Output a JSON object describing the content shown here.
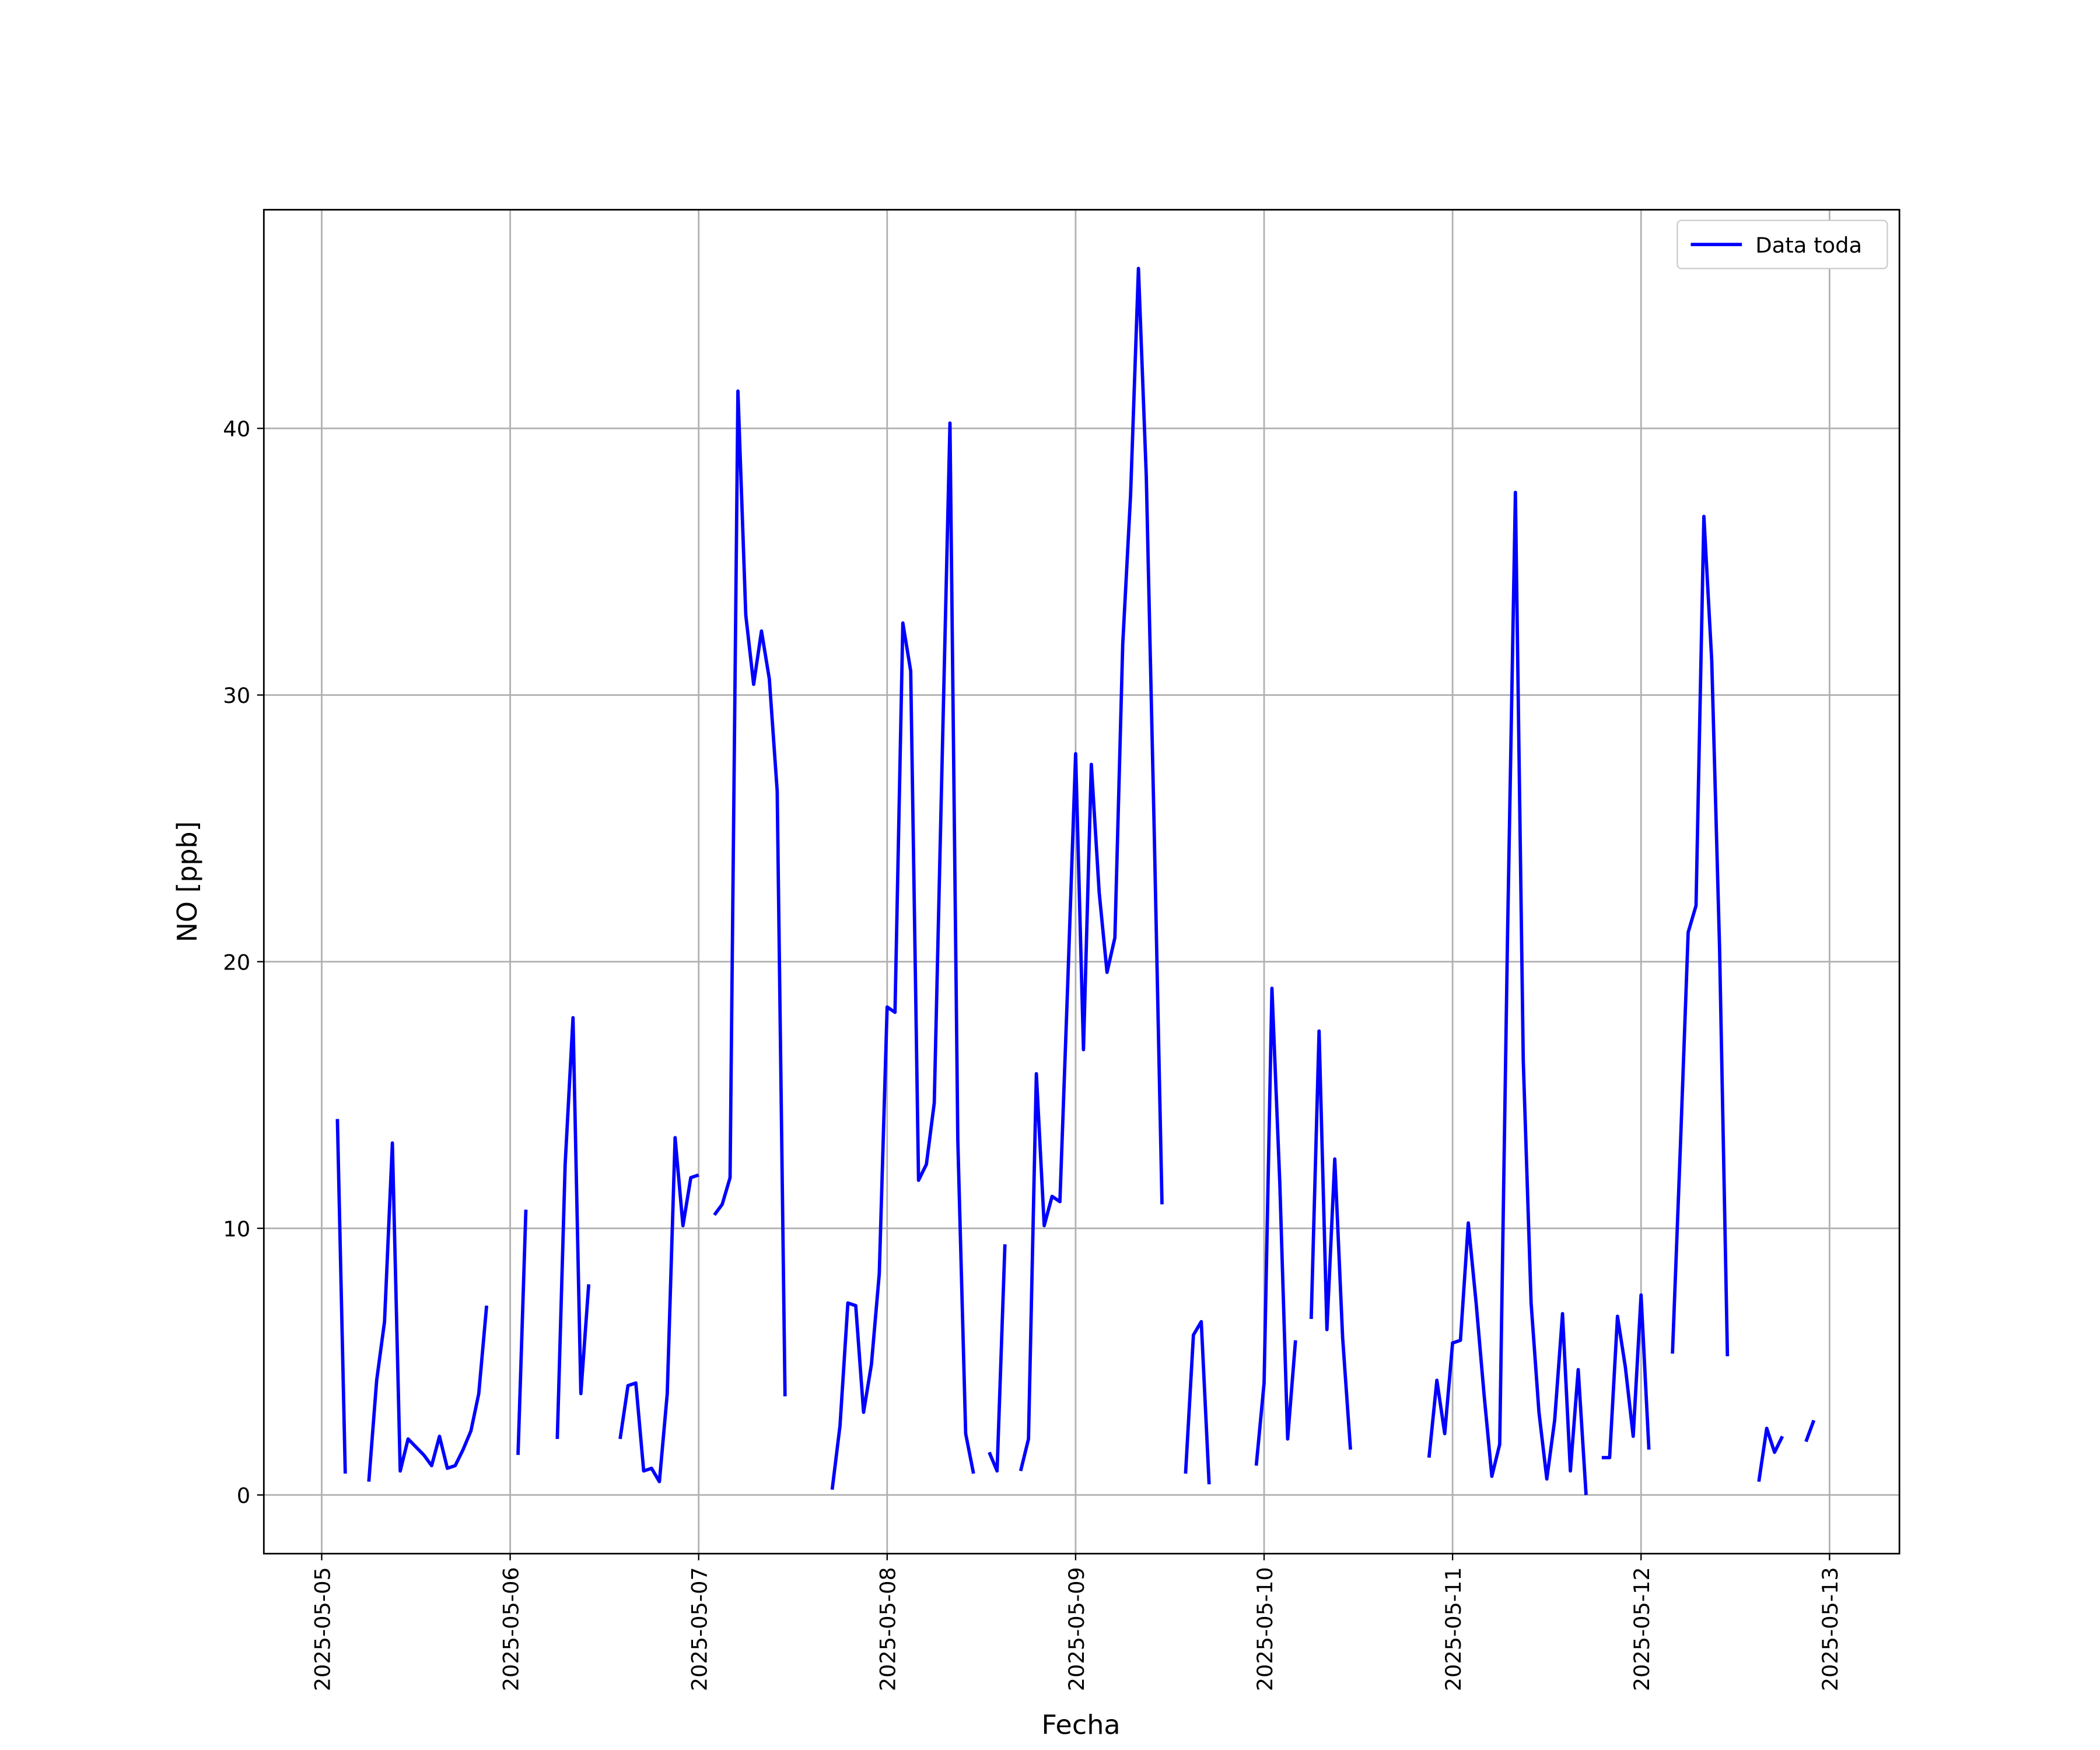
{
  "chart_data": {
    "type": "line",
    "x_label": "Fecha",
    "y_label": "NO [ppb]",
    "x": [
      "2025-05-05 02:00",
      "2025-05-05 03:00",
      "2025-05-05 04:00",
      "2025-05-05 06:00",
      "2025-05-05 07:00",
      "2025-05-05 08:00",
      "2025-05-05 09:00",
      "2025-05-05 10:00",
      "2025-05-05 11:00",
      "2025-05-05 12:00",
      "2025-05-05 13:00",
      "2025-05-05 14:00",
      "2025-05-05 15:00",
      "2025-05-05 16:00",
      "2025-05-05 17:00",
      "2025-05-05 18:00",
      "2025-05-05 19:00",
      "2025-05-05 20:00",
      "2025-05-05 21:00",
      "2025-05-05 22:00",
      "2025-05-06 01:00",
      "2025-05-06 02:00",
      "2025-05-06 03:00",
      "2025-05-06 06:00",
      "2025-05-06 07:00",
      "2025-05-06 08:00",
      "2025-05-06 09:00",
      "2025-05-06 10:00",
      "2025-05-06 11:00",
      "2025-05-06 14:00",
      "2025-05-06 15:00",
      "2025-05-06 16:00",
      "2025-05-06 17:00",
      "2025-05-06 18:00",
      "2025-05-06 19:00",
      "2025-05-06 20:00",
      "2025-05-06 21:00",
      "2025-05-06 22:00",
      "2025-05-06 23:00",
      "2025-05-07 00:00",
      "2025-05-07 01:00",
      "2025-05-07 02:00",
      "2025-05-07 03:00",
      "2025-05-07 04:00",
      "2025-05-07 05:00",
      "2025-05-07 06:00",
      "2025-05-07 07:00",
      "2025-05-07 08:00",
      "2025-05-07 09:00",
      "2025-05-07 10:00",
      "2025-05-07 11:00",
      "2025-05-07 12:00",
      "2025-05-07 17:00",
      "2025-05-07 18:00",
      "2025-05-07 19:00",
      "2025-05-07 20:00",
      "2025-05-07 21:00",
      "2025-05-07 22:00",
      "2025-05-07 23:00",
      "2025-05-08 00:00",
      "2025-05-08 01:00",
      "2025-05-08 02:00",
      "2025-05-08 03:00",
      "2025-05-08 04:00",
      "2025-05-08 05:00",
      "2025-05-08 06:00",
      "2025-05-08 07:00",
      "2025-05-08 08:00",
      "2025-05-08 09:00",
      "2025-05-08 10:00",
      "2025-05-08 11:00",
      "2025-05-08 12:00",
      "2025-05-08 13:00",
      "2025-05-08 14:00",
      "2025-05-08 15:00",
      "2025-05-08 16:00",
      "2025-05-08 17:00",
      "2025-05-08 18:00",
      "2025-05-08 19:00",
      "2025-05-08 20:00",
      "2025-05-08 21:00",
      "2025-05-08 22:00",
      "2025-05-08 23:00",
      "2025-05-09 00:00",
      "2025-05-09 01:00",
      "2025-05-09 02:00",
      "2025-05-09 03:00",
      "2025-05-09 04:00",
      "2025-05-09 05:00",
      "2025-05-09 06:00",
      "2025-05-09 07:00",
      "2025-05-09 08:00",
      "2025-05-09 09:00",
      "2025-05-09 10:00",
      "2025-05-09 11:00",
      "2025-05-09 12:00",
      "2025-05-09 14:00",
      "2025-05-09 15:00",
      "2025-05-09 16:00",
      "2025-05-09 17:00",
      "2025-05-09 18:00",
      "2025-05-09 23:00",
      "2025-05-10 00:00",
      "2025-05-10 01:00",
      "2025-05-10 02:00",
      "2025-05-10 03:00",
      "2025-05-10 04:00",
      "2025-05-10 05:00",
      "2025-05-10 06:00",
      "2025-05-10 07:00",
      "2025-05-10 08:00",
      "2025-05-10 09:00",
      "2025-05-10 10:00",
      "2025-05-10 11:00",
      "2025-05-10 12:00",
      "2025-05-10 21:00",
      "2025-05-10 22:00",
      "2025-05-10 23:00",
      "2025-05-11 00:00",
      "2025-05-11 01:00",
      "2025-05-11 02:00",
      "2025-05-11 03:00",
      "2025-05-11 04:00",
      "2025-05-11 05:00",
      "2025-05-11 06:00",
      "2025-05-11 07:00",
      "2025-05-11 08:00",
      "2025-05-11 09:00",
      "2025-05-11 10:00",
      "2025-05-11 11:00",
      "2025-05-11 12:00",
      "2025-05-11 13:00",
      "2025-05-11 14:00",
      "2025-05-11 15:00",
      "2025-05-11 16:00",
      "2025-05-11 17:00",
      "2025-05-11 18:00",
      "2025-05-11 19:00",
      "2025-05-11 20:00",
      "2025-05-11 21:00",
      "2025-05-11 22:00",
      "2025-05-11 23:00",
      "2025-05-12 00:00",
      "2025-05-12 01:00",
      "2025-05-12 02:00",
      "2025-05-12 04:00",
      "2025-05-12 05:00",
      "2025-05-12 06:00",
      "2025-05-12 07:00",
      "2025-05-12 08:00",
      "2025-05-12 09:00",
      "2025-05-12 10:00",
      "2025-05-12 11:00",
      "2025-05-12 12:00",
      "2025-05-12 15:00",
      "2025-05-12 16:00",
      "2025-05-12 17:00",
      "2025-05-12 18:00",
      "2025-05-12 19:00",
      "2025-05-12 21:00",
      "2025-05-12 22:00"
    ],
    "series": [
      {
        "name": "Data toda",
        "color": "#0000ff",
        "values": [
          14.1,
          0.8,
          null,
          0.5,
          4.3,
          6.5,
          13.2,
          0.9,
          2.1,
          1.8,
          1.5,
          1.1,
          2.2,
          1.0,
          1.1,
          1.7,
          2.4,
          3.8,
          7.1,
          null,
          1.5,
          10.7,
          null,
          2.1,
          12.4,
          17.9,
          3.8,
          7.9,
          null,
          2.1,
          4.1,
          4.2,
          0.9,
          1.0,
          0.5,
          3.8,
          13.4,
          10.1,
          11.9,
          12.0,
          null,
          10.5,
          10.9,
          11.9,
          41.4,
          33.0,
          30.4,
          32.4,
          30.6,
          26.4,
          3.7,
          null,
          0.2,
          2.6,
          7.2,
          7.1,
          3.1,
          4.9,
          8.3,
          18.3,
          18.1,
          32.7,
          30.9,
          11.8,
          12.4,
          14.7,
          27.5,
          40.2,
          13.3,
          2.3,
          0.8,
          null,
          1.6,
          0.9,
          9.4,
          null,
          0.9,
          2.1,
          15.8,
          10.1,
          11.2,
          11.0,
          19.2,
          27.8,
          16.7,
          27.4,
          22.6,
          19.6,
          20.9,
          31.9,
          37.5,
          46.0,
          38.2,
          25.0,
          10.9,
          null,
          0.8,
          6.0,
          6.5,
          0.4,
          null,
          1.1,
          4.2,
          19.0,
          11.7,
          2.1,
          5.8,
          null,
          6.6,
          17.4,
          6.2,
          12.6,
          5.9,
          1.7,
          null,
          1.4,
          4.3,
          2.3,
          5.7,
          5.8,
          10.2,
          7.2,
          3.8,
          0.7,
          1.9,
          21.0,
          37.6,
          16.3,
          7.2,
          3.1,
          0.6,
          2.8,
          6.8,
          0.9,
          4.7,
          0,
          null,
          1.4,
          1.4,
          6.7,
          4.8,
          2.2,
          7.5,
          1.7,
          null,
          5.3,
          13.0,
          21.1,
          22.1,
          36.7,
          31.3,
          20.5,
          5.2,
          null,
          0.5,
          2.5,
          1.6,
          2.2,
          null,
          2.0,
          2.8
        ]
      }
    ],
    "xlim": [
      "2025-05-04 16:38",
      "2025-05-13 08:54"
    ],
    "xticks": [
      "2025-05-05",
      "2025-05-06",
      "2025-05-07",
      "2025-05-08",
      "2025-05-09",
      "2025-05-10",
      "2025-05-11",
      "2025-05-12",
      "2025-05-13"
    ],
    "ylim": [
      -2.2,
      48.2
    ],
    "yticks": [
      0,
      10,
      20,
      30,
      40
    ],
    "grid": true,
    "legend": "upper right"
  }
}
